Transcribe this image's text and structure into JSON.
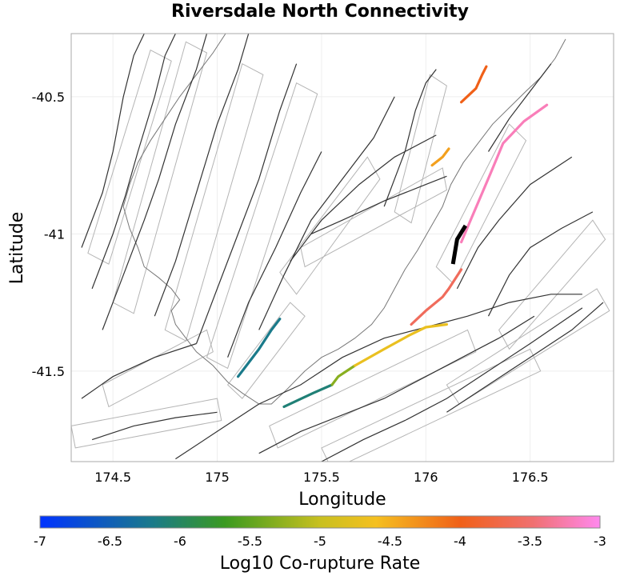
{
  "title": "Riversdale North Connectivity",
  "x_axis": {
    "label": "Longitude",
    "ticks": [
      "174.5",
      "175",
      "175.5",
      "176",
      "176.5"
    ]
  },
  "y_axis": {
    "label": "Latitude",
    "ticks": [
      "-40.5",
      "-41",
      "-41.5"
    ]
  },
  "colorbar": {
    "label": "Log10 Co-rupture Rate",
    "ticks": [
      "-7",
      "-6.5",
      "-6",
      "-5.5",
      "-5",
      "-4.5",
      "-4",
      "-3.5",
      "-3"
    ],
    "min": -7,
    "max": -3
  },
  "colors": {
    "fault_trace": "#333333",
    "fault_polygon": "#b4b4b4",
    "coastline": "#777777",
    "source_fault": "#000000",
    "grid": "#eeeeee",
    "frame": "#aaaaaa"
  },
  "chart_data": {
    "type": "map",
    "title": "Riversdale North Connectivity",
    "xlabel": "Longitude",
    "ylabel": "Latitude",
    "xlim": [
      174.3,
      176.9
    ],
    "ylim": [
      -41.83,
      -40.27
    ],
    "source_fault": {
      "name": "Riversdale North",
      "trace": [
        [
          176.13,
          -41.11
        ],
        [
          176.15,
          -41.02
        ],
        [
          176.19,
          -40.97
        ]
      ]
    },
    "colored_ruptures": [
      {
        "trace": [
          [
            176.17,
            -40.52
          ],
          [
            176.24,
            -40.47
          ],
          [
            176.27,
            -40.42
          ],
          [
            176.29,
            -40.39
          ]
        ],
        "log10_rate": -4.0
      },
      {
        "trace": [
          [
            176.03,
            -40.75
          ],
          [
            176.08,
            -40.72
          ],
          [
            176.11,
            -40.69
          ]
        ],
        "log10_rate": -4.4
      },
      {
        "trace": [
          [
            176.17,
            -41.03
          ],
          [
            176.22,
            -40.94
          ],
          [
            176.31,
            -40.78
          ],
          [
            176.37,
            -40.67
          ],
          [
            176.47,
            -40.59
          ],
          [
            176.58,
            -40.53
          ]
        ],
        "log10_rate": -3.2
      },
      {
        "trace": [
          [
            175.93,
            -41.33
          ],
          [
            176.0,
            -41.28
          ],
          [
            176.08,
            -41.23
          ],
          [
            176.11,
            -41.2
          ],
          [
            176.17,
            -41.13
          ]
        ],
        "log10_rate": -3.6
      },
      {
        "trace": [
          [
            175.1,
            -41.52
          ],
          [
            175.15,
            -41.47
          ],
          [
            175.2,
            -41.42
          ],
          [
            175.26,
            -41.35
          ],
          [
            175.3,
            -41.31
          ]
        ],
        "log10_rate": -6.2
      },
      {
        "trace": [
          [
            175.32,
            -41.63
          ],
          [
            175.46,
            -41.58
          ],
          [
            175.55,
            -41.55
          ]
        ],
        "log10_rate": -6.1
      },
      {
        "trace": [
          [
            175.55,
            -41.55
          ],
          [
            175.58,
            -41.52
          ],
          [
            175.66,
            -41.48
          ]
        ],
        "log10_rate": -5.3
      },
      {
        "trace": [
          [
            175.66,
            -41.48
          ],
          [
            175.8,
            -41.42
          ],
          [
            175.92,
            -41.37
          ],
          [
            176.0,
            -41.34
          ],
          [
            176.1,
            -41.33
          ]
        ],
        "log10_rate": -4.7
      }
    ],
    "fault_traces": [
      [
        [
          174.35,
          -41.05
        ],
        [
          174.45,
          -40.85
        ],
        [
          174.5,
          -40.7
        ],
        [
          174.55,
          -40.5
        ],
        [
          174.6,
          -40.35
        ],
        [
          174.65,
          -40.27
        ]
      ],
      [
        [
          174.4,
          -41.2
        ],
        [
          174.5,
          -41.0
        ],
        [
          174.56,
          -40.86
        ],
        [
          174.62,
          -40.7
        ],
        [
          174.7,
          -40.5
        ],
        [
          174.75,
          -40.35
        ],
        [
          174.8,
          -40.27
        ]
      ],
      [
        [
          174.45,
          -41.35
        ],
        [
          174.55,
          -41.15
        ],
        [
          174.65,
          -40.95
        ],
        [
          174.72,
          -40.8
        ],
        [
          174.8,
          -40.6
        ],
        [
          174.9,
          -40.4
        ],
        [
          174.95,
          -40.27
        ]
      ],
      [
        [
          174.7,
          -41.3
        ],
        [
          174.8,
          -41.1
        ],
        [
          174.9,
          -40.85
        ],
        [
          175.0,
          -40.6
        ],
        [
          175.1,
          -40.4
        ],
        [
          175.15,
          -40.27
        ]
      ],
      [
        [
          174.9,
          -41.4
        ],
        [
          175.0,
          -41.2
        ],
        [
          175.1,
          -41.0
        ],
        [
          175.2,
          -40.8
        ],
        [
          175.3,
          -40.55
        ],
        [
          175.38,
          -40.38
        ]
      ],
      [
        [
          175.05,
          -41.45
        ],
        [
          175.15,
          -41.25
        ],
        [
          175.28,
          -41.05
        ],
        [
          175.4,
          -40.85
        ],
        [
          175.5,
          -40.7
        ]
      ],
      [
        [
          175.2,
          -41.35
        ],
        [
          175.32,
          -41.15
        ],
        [
          175.45,
          -40.95
        ],
        [
          175.6,
          -40.8
        ],
        [
          175.75,
          -40.65
        ],
        [
          175.85,
          -40.5
        ]
      ],
      [
        [
          175.35,
          -41.1
        ],
        [
          175.5,
          -40.95
        ],
        [
          175.68,
          -40.82
        ],
        [
          175.85,
          -40.72
        ],
        [
          176.05,
          -40.64
        ]
      ],
      [
        [
          175.45,
          -41.0
        ],
        [
          175.6,
          -40.95
        ],
        [
          175.8,
          -40.88
        ],
        [
          176.0,
          -40.82
        ],
        [
          176.1,
          -40.79
        ]
      ],
      [
        [
          175.8,
          -40.9
        ],
        [
          175.9,
          -40.7
        ],
        [
          175.95,
          -40.55
        ],
        [
          176.0,
          -40.45
        ],
        [
          176.05,
          -40.4
        ]
      ],
      [
        [
          174.35,
          -41.6
        ],
        [
          174.5,
          -41.52
        ],
        [
          174.7,
          -41.45
        ],
        [
          174.9,
          -41.4
        ]
      ],
      [
        [
          174.4,
          -41.75
        ],
        [
          174.6,
          -41.7
        ],
        [
          174.8,
          -41.67
        ],
        [
          175.0,
          -41.65
        ]
      ],
      [
        [
          174.8,
          -41.82
        ],
        [
          175.0,
          -41.72
        ],
        [
          175.2,
          -41.62
        ],
        [
          175.4,
          -41.55
        ],
        [
          175.6,
          -41.45
        ],
        [
          175.8,
          -41.38
        ],
        [
          176.0,
          -41.34
        ],
        [
          176.2,
          -41.3
        ],
        [
          176.4,
          -41.25
        ],
        [
          176.6,
          -41.22
        ],
        [
          176.75,
          -41.22
        ]
      ],
      [
        [
          175.2,
          -41.8
        ],
        [
          175.4,
          -41.72
        ],
        [
          175.6,
          -41.66
        ],
        [
          175.8,
          -41.6
        ],
        [
          176.0,
          -41.52
        ],
        [
          176.2,
          -41.44
        ],
        [
          176.35,
          -41.38
        ],
        [
          176.52,
          -41.3
        ]
      ],
      [
        [
          175.5,
          -41.83
        ],
        [
          175.7,
          -41.75
        ],
        [
          175.9,
          -41.68
        ],
        [
          176.1,
          -41.6
        ],
        [
          176.3,
          -41.5
        ],
        [
          176.5,
          -41.4
        ],
        [
          176.75,
          -41.27
        ]
      ],
      [
        [
          176.1,
          -41.65
        ],
        [
          176.3,
          -41.55
        ],
        [
          176.5,
          -41.45
        ],
        [
          176.7,
          -41.35
        ],
        [
          176.85,
          -41.25
        ]
      ],
      [
        [
          176.3,
          -41.3
        ],
        [
          176.4,
          -41.15
        ],
        [
          176.5,
          -41.05
        ],
        [
          176.65,
          -40.98
        ],
        [
          176.8,
          -40.92
        ]
      ],
      [
        [
          176.15,
          -41.2
        ],
        [
          176.25,
          -41.05
        ],
        [
          176.35,
          -40.95
        ],
        [
          176.5,
          -40.82
        ],
        [
          176.7,
          -40.72
        ]
      ],
      [
        [
          176.3,
          -40.7
        ],
        [
          176.4,
          -40.58
        ],
        [
          176.5,
          -40.48
        ],
        [
          176.6,
          -40.38
        ]
      ]
    ],
    "fault_polygons": [
      [
        [
          174.38,
          -41.07
        ],
        [
          174.68,
          -40.33
        ],
        [
          174.78,
          -40.37
        ],
        [
          174.48,
          -41.11
        ]
      ],
      [
        [
          174.5,
          -41.25
        ],
        [
          174.85,
          -40.3
        ],
        [
          174.95,
          -40.34
        ],
        [
          174.6,
          -41.29
        ]
      ],
      [
        [
          174.75,
          -41.35
        ],
        [
          175.12,
          -40.38
        ],
        [
          175.22,
          -40.42
        ],
        [
          174.85,
          -41.39
        ]
      ],
      [
        [
          174.95,
          -41.45
        ],
        [
          175.38,
          -40.45
        ],
        [
          175.48,
          -40.49
        ],
        [
          175.05,
          -41.49
        ]
      ],
      [
        [
          175.3,
          -41.14
        ],
        [
          175.72,
          -40.72
        ],
        [
          175.78,
          -40.8
        ],
        [
          175.38,
          -41.22
        ]
      ],
      [
        [
          175.4,
          -41.05
        ],
        [
          176.08,
          -40.76
        ],
        [
          176.1,
          -40.84
        ],
        [
          175.42,
          -41.12
        ]
      ],
      [
        [
          175.85,
          -40.92
        ],
        [
          176.02,
          -40.42
        ],
        [
          176.1,
          -40.46
        ],
        [
          175.93,
          -40.96
        ]
      ],
      [
        [
          176.05,
          -41.12
        ],
        [
          176.4,
          -40.6
        ],
        [
          176.48,
          -40.66
        ],
        [
          176.13,
          -41.18
        ]
      ],
      [
        [
          175.25,
          -41.7
        ],
        [
          176.2,
          -41.35
        ],
        [
          176.24,
          -41.43
        ],
        [
          175.29,
          -41.78
        ]
      ],
      [
        [
          175.5,
          -41.78
        ],
        [
          176.5,
          -41.42
        ],
        [
          176.55,
          -41.5
        ],
        [
          175.55,
          -41.86
        ]
      ],
      [
        [
          176.1,
          -41.55
        ],
        [
          176.82,
          -41.2
        ],
        [
          176.88,
          -41.28
        ],
        [
          176.16,
          -41.62
        ]
      ],
      [
        [
          176.35,
          -41.35
        ],
        [
          176.8,
          -40.95
        ],
        [
          176.86,
          -41.02
        ],
        [
          176.4,
          -41.42
        ]
      ],
      [
        [
          174.3,
          -41.7
        ],
        [
          175.0,
          -41.6
        ],
        [
          175.02,
          -41.68
        ],
        [
          174.32,
          -41.78
        ]
      ],
      [
        [
          174.45,
          -41.55
        ],
        [
          174.95,
          -41.35
        ],
        [
          174.98,
          -41.43
        ],
        [
          174.48,
          -41.63
        ]
      ],
      [
        [
          175.05,
          -41.55
        ],
        [
          175.35,
          -41.25
        ],
        [
          175.42,
          -41.3
        ],
        [
          175.12,
          -41.6
        ]
      ]
    ],
    "coastline": [
      [
        176.67,
        -40.29
      ],
      [
        176.62,
        -40.36
      ],
      [
        176.55,
        -40.43
      ],
      [
        176.48,
        -40.48
      ],
      [
        176.4,
        -40.54
      ],
      [
        176.32,
        -40.6
      ],
      [
        176.25,
        -40.67
      ],
      [
        176.18,
        -40.74
      ],
      [
        176.12,
        -40.82
      ],
      [
        176.08,
        -40.9
      ],
      [
        176.02,
        -40.98
      ],
      [
        175.96,
        -41.06
      ],
      [
        175.9,
        -41.13
      ],
      [
        175.85,
        -41.2
      ],
      [
        175.8,
        -41.27
      ],
      [
        175.74,
        -41.33
      ],
      [
        175.66,
        -41.38
      ],
      [
        175.58,
        -41.42
      ],
      [
        175.5,
        -41.45
      ],
      [
        175.42,
        -41.5
      ],
      [
        175.33,
        -41.57
      ],
      [
        175.26,
        -41.62
      ],
      [
        175.2,
        -41.62
      ],
      [
        175.12,
        -41.58
      ],
      [
        175.05,
        -41.54
      ],
      [
        174.98,
        -41.48
      ],
      [
        174.9,
        -41.43
      ],
      [
        174.85,
        -41.38
      ],
      [
        174.8,
        -41.33
      ],
      [
        174.78,
        -41.28
      ],
      [
        174.82,
        -41.24
      ],
      [
        174.78,
        -41.2
      ],
      [
        174.72,
        -41.16
      ],
      [
        174.65,
        -41.12
      ],
      [
        174.62,
        -41.05
      ],
      [
        174.58,
        -40.98
      ],
      [
        174.55,
        -40.9
      ],
      [
        174.58,
        -40.82
      ],
      [
        174.62,
        -40.74
      ],
      [
        174.68,
        -40.66
      ],
      [
        174.75,
        -40.58
      ],
      [
        174.82,
        -40.5
      ],
      [
        174.9,
        -40.42
      ],
      [
        174.98,
        -40.34
      ],
      [
        175.04,
        -40.27
      ]
    ]
  }
}
